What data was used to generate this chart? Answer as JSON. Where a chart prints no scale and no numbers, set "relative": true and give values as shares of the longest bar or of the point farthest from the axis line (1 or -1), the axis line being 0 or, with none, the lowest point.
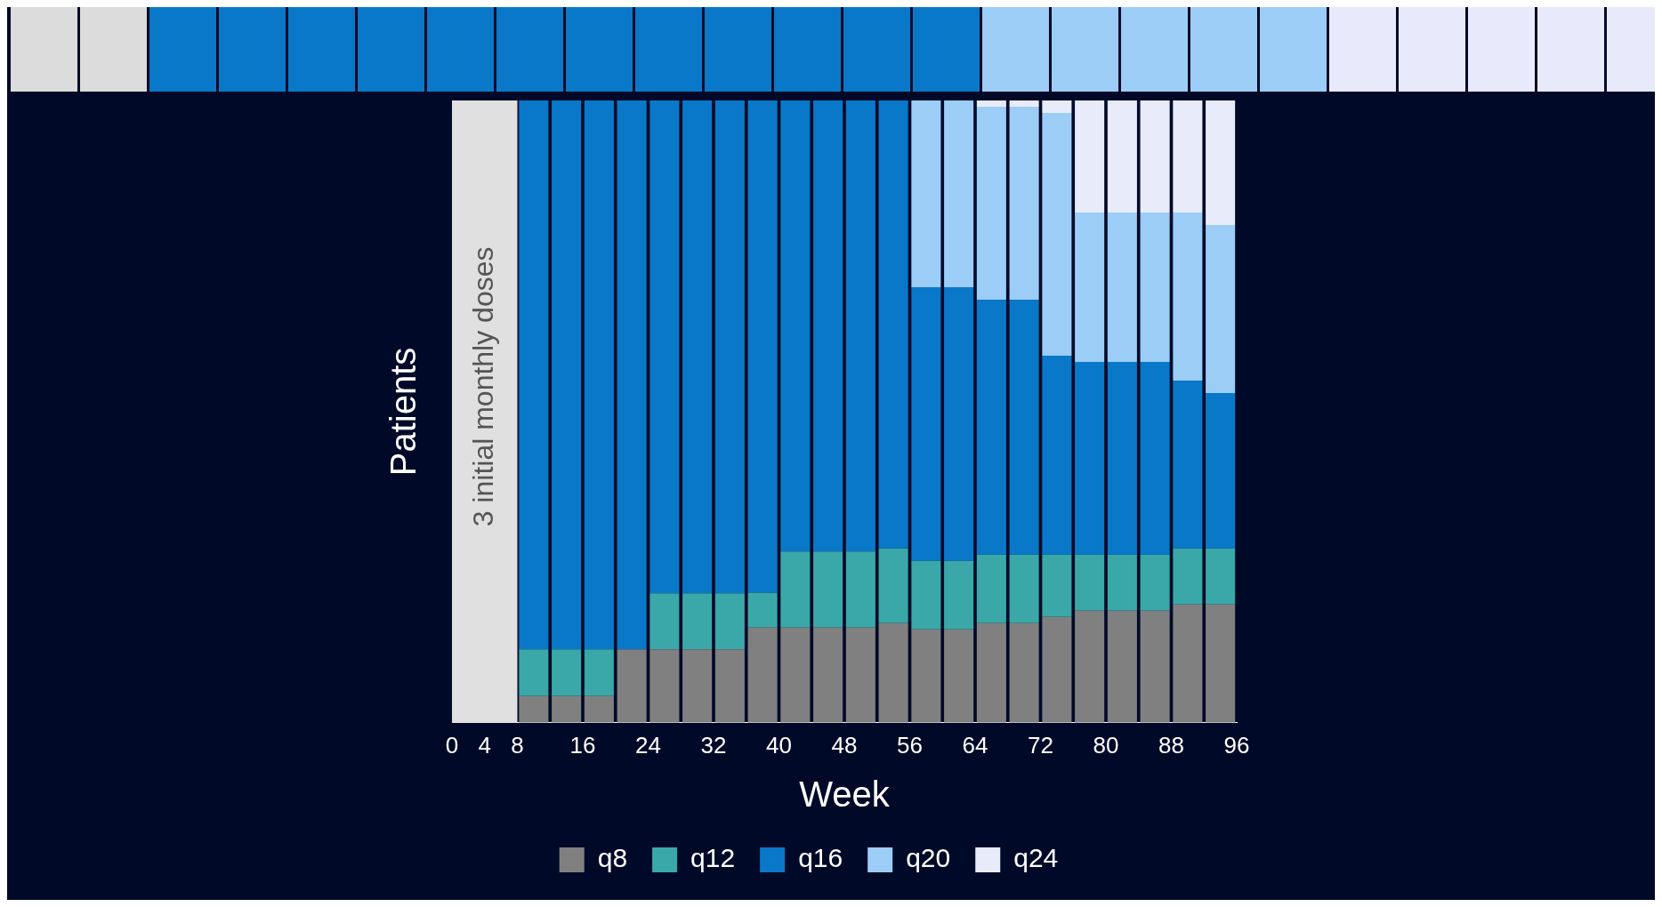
{
  "chart_data": {
    "type": "bar",
    "stacked": true,
    "relative": true,
    "xlabel": "Week",
    "ylabel": "Patients",
    "x": [
      10,
      14,
      18,
      22,
      26,
      30,
      34,
      38,
      42,
      46,
      50,
      54,
      58,
      62,
      66,
      70,
      74,
      78,
      82,
      86,
      90,
      94
    ],
    "xlim": [
      0,
      96
    ],
    "xticks": [
      0,
      4,
      8,
      16,
      24,
      32,
      40,
      48,
      56,
      64,
      72,
      80,
      88,
      96
    ],
    "bands": [
      {
        "axis": "x",
        "from": 0,
        "to": 8,
        "label": "3 initial monthly doses",
        "color": "#e0e0e0"
      }
    ],
    "series": [
      {
        "name": "q8",
        "color": "#808080",
        "values": [
          0.043,
          0.043,
          0.043,
          0.118,
          0.118,
          0.118,
          0.118,
          0.153,
          0.153,
          0.153,
          0.153,
          0.16,
          0.15,
          0.15,
          0.16,
          0.16,
          0.17,
          0.18,
          0.18,
          0.18,
          0.19,
          0.19
        ]
      },
      {
        "name": "q12",
        "color": "#3aa8a8",
        "values": [
          0.075,
          0.075,
          0.075,
          0,
          0.09,
          0.09,
          0.09,
          0.056,
          0.122,
          0.122,
          0.122,
          0.12,
          0.11,
          0.11,
          0.11,
          0.11,
          0.1,
          0.09,
          0.09,
          0.09,
          0.09,
          0.09
        ]
      },
      {
        "name": "q16",
        "color": "#0a78c8",
        "values": [
          0.882,
          0.882,
          0.882,
          0.882,
          0.792,
          0.792,
          0.792,
          0.791,
          0.725,
          0.725,
          0.725,
          0.72,
          0.44,
          0.44,
          0.41,
          0.41,
          0.32,
          0.31,
          0.31,
          0.31,
          0.27,
          0.25
        ]
      },
      {
        "name": "q20",
        "color": "#9ccdf7",
        "values": [
          0,
          0,
          0,
          0,
          0,
          0,
          0,
          0,
          0,
          0,
          0,
          0,
          0.3,
          0.3,
          0.31,
          0.31,
          0.39,
          0.24,
          0.24,
          0.24,
          0.27,
          0.27
        ]
      },
      {
        "name": "q24",
        "color": "#e8ecfa",
        "values": [
          0,
          0,
          0,
          0,
          0,
          0,
          0,
          0,
          0,
          0,
          0,
          0,
          0,
          0,
          0.01,
          0.01,
          0.02,
          0.18,
          0.18,
          0.18,
          0.18,
          0.2
        ]
      }
    ],
    "legend": "bottom",
    "grid": false
  }
}
